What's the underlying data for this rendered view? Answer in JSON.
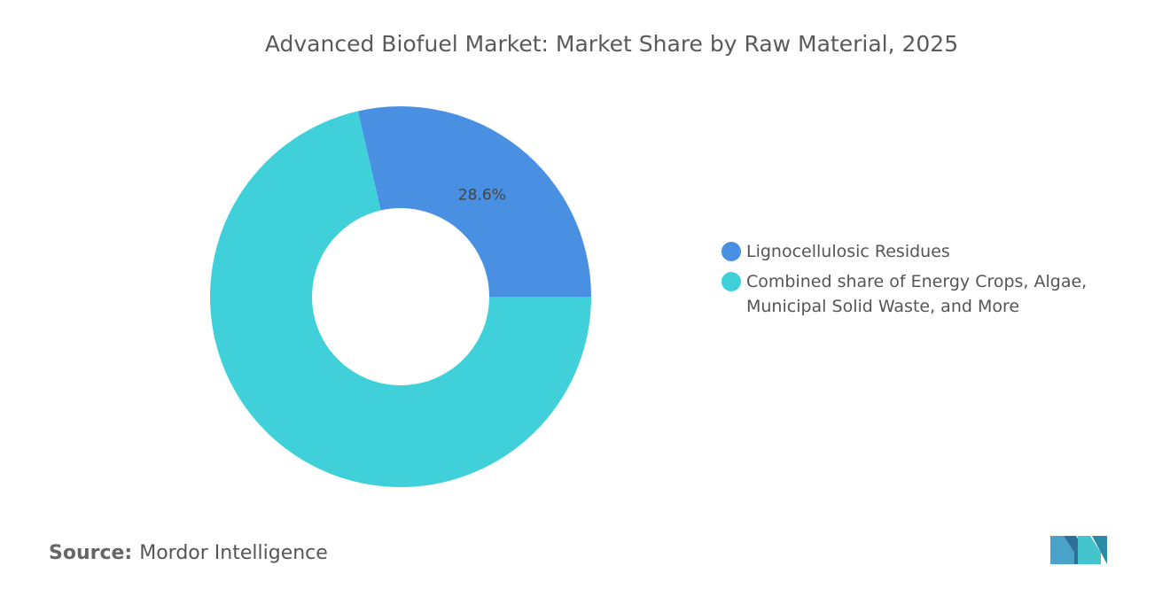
{
  "chart_data": {
    "type": "donut",
    "title": "Advanced Biofuel Market: Market Share by Raw Material, 2025",
    "categories": [
      "Lignocellulosic Residues",
      "Combined share of Energy Crops, Algae, Municipal Solid Waste, and More"
    ],
    "values": [
      28.6,
      71.4
    ],
    "value_labels": [
      "28.6%",
      null
    ],
    "colors": [
      "#4a90e2",
      "#40d0da"
    ],
    "legend": "right"
  },
  "source": {
    "label": "Source:",
    "text": "Mordor Intelligence"
  }
}
